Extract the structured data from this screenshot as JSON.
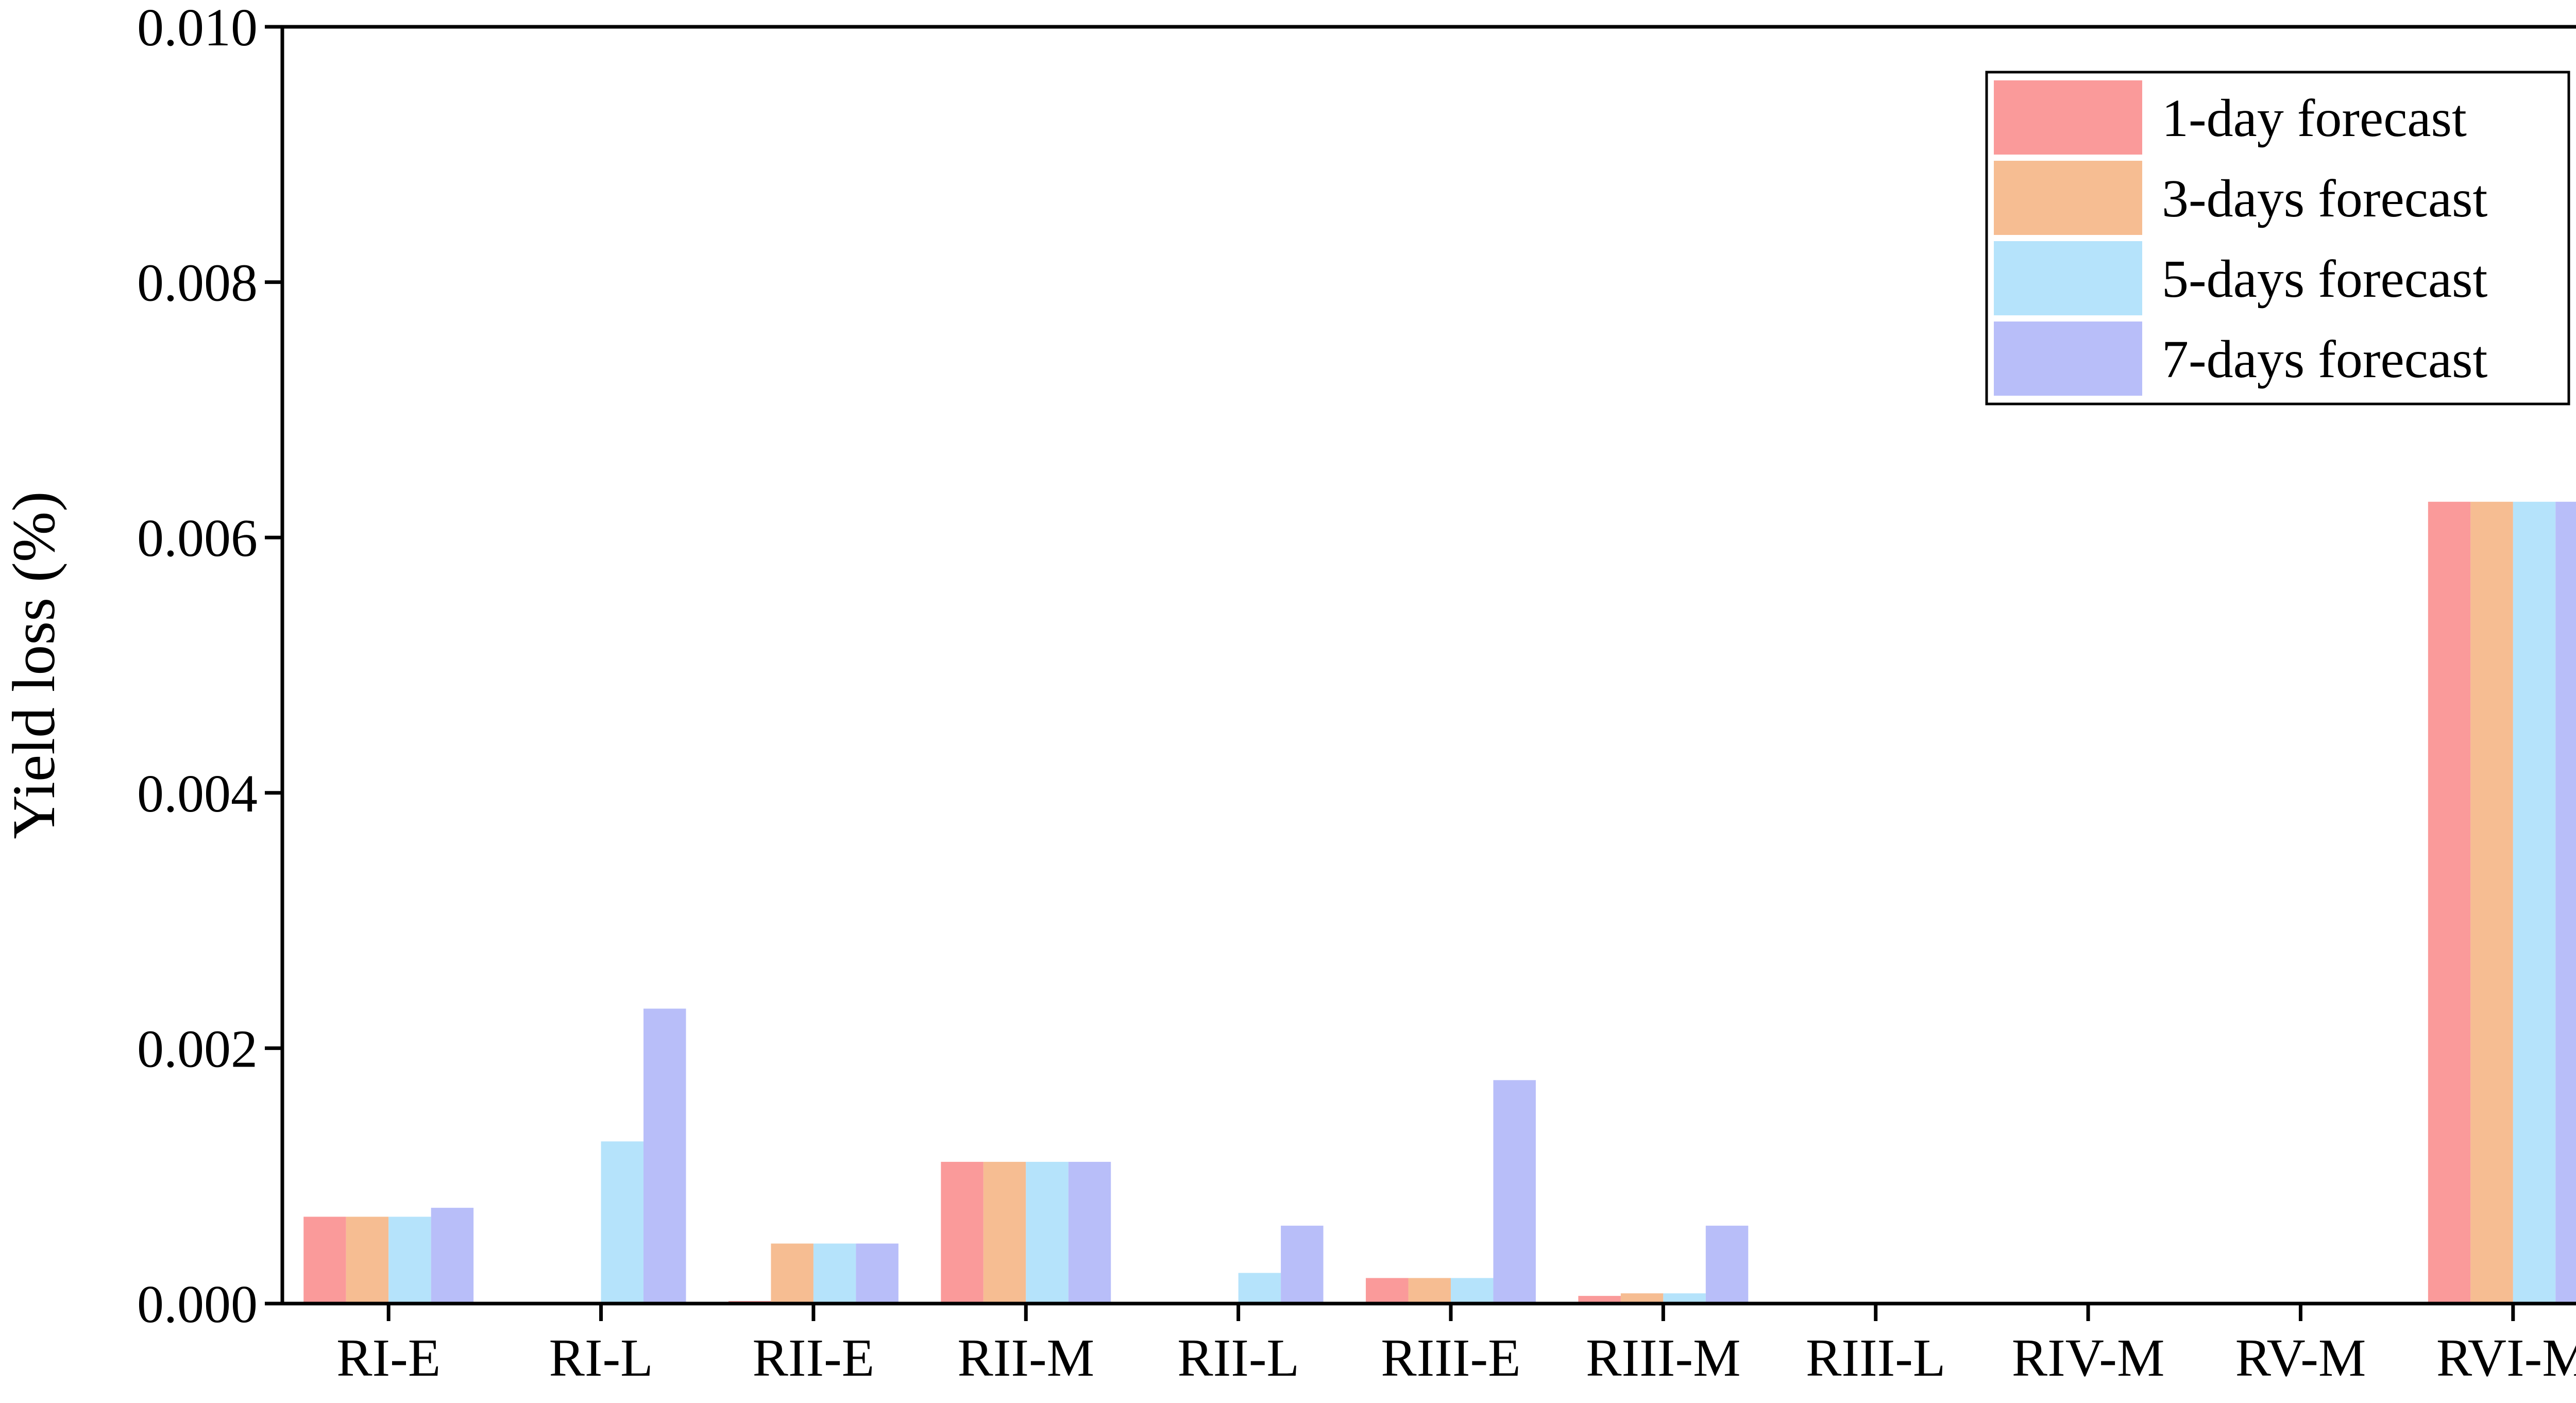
{
  "chart_data": {
    "type": "bar",
    "title": "",
    "xlabel": "",
    "ylabel": "Yield loss (%)",
    "ylim": [
      0,
      0.01
    ],
    "yticks": [
      "0.000",
      "0.002",
      "0.004",
      "0.006",
      "0.008",
      "0.010"
    ],
    "yticks_values": [
      0,
      0.002,
      0.004,
      0.006,
      0.008,
      0.01
    ],
    "grid": false,
    "legend_position": "top-right",
    "categories": [
      "RI-E",
      "RI-L",
      "RII-E",
      "RII-M",
      "RII-L",
      "RIII-E",
      "RIII-M",
      "RIII-L",
      "RIV-M",
      "RV-M",
      "RVI-M"
    ],
    "series": [
      {
        "name": "1-day forecast",
        "color": "#fa9a9a",
        "values": [
          0.00068,
          0,
          2e-05,
          0.00111,
          0,
          0.0002,
          6e-05,
          0,
          0,
          0,
          0.00628
        ]
      },
      {
        "name": "3-days forecast",
        "color": "#f6bd92",
        "values": [
          0.00068,
          0,
          0.00047,
          0.00111,
          0,
          0.0002,
          8e-05,
          0,
          0,
          0,
          0.00628
        ]
      },
      {
        "name": "5-days forecast",
        "color": "#b5e3fb",
        "values": [
          0.00068,
          0.00127,
          0.00047,
          0.00111,
          0.00024,
          0.0002,
          8e-05,
          0,
          0,
          0,
          0.00628
        ]
      },
      {
        "name": "7-days forecast",
        "color": "#b8bef9",
        "values": [
          0.00075,
          0.00231,
          0.00047,
          0.00111,
          0.00061,
          0.00175,
          0.00061,
          0,
          0,
          0,
          0.00628
        ]
      }
    ]
  }
}
